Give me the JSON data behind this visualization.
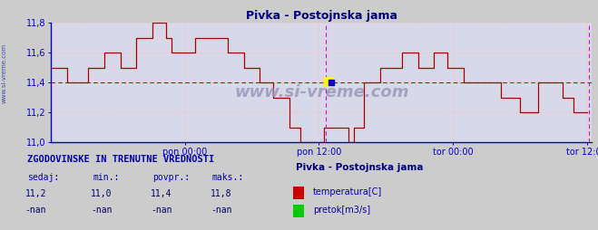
{
  "title": "Pivka - Postojnska jama",
  "title_color": "#000080",
  "bg_color": "#cccccc",
  "plot_bg_color": "#d8d8e8",
  "ylim": [
    11.0,
    11.8
  ],
  "ytick_vals": [
    11.0,
    11.2,
    11.4,
    11.6,
    11.8
  ],
  "xtick_labels": [
    "pon 00:00",
    "pon 12:00",
    "tor 00:00",
    "tor 12:00"
  ],
  "xtick_positions": [
    0.25,
    0.5,
    0.75,
    1.0
  ],
  "line_color": "#aa0000",
  "avg_value": 11.4,
  "avg_color": "#cc0000",
  "grid_color": "#ffbbbb",
  "vline1_x": 0.513,
  "vline2_x": 1.005,
  "vline_color": "#dd00dd",
  "axis_color": "#0000cc",
  "watermark": "www.si-vreme.com",
  "watermark_color": "#9999bb",
  "sidebar_text": "www.si-vreme.com",
  "sidebar_color": "#4444aa",
  "hist_title": "ZGODOVINSKE IN TRENUTNE VREDNOSTI",
  "hist_color": "#0000aa",
  "col_headers": [
    "sedaj:",
    "min.:",
    "povpr.:",
    "maks.:"
  ],
  "col_header_color": "#0000aa",
  "row1_vals": [
    "11,2",
    "11,0",
    "11,4",
    "11,8"
  ],
  "row2_vals": [
    "-nan",
    "-nan",
    "-nan",
    "-nan"
  ],
  "val_color": "#000066",
  "legend_title": "Pivka - Postojnska jama",
  "legend_title_color": "#000080",
  "temp_label": "temperatura[C]",
  "flow_label": "pretok[m3/s]",
  "temp_color": "#cc0000",
  "flow_color": "#00cc00",
  "temp_data_x": [
    0.0,
    0.03,
    0.03,
    0.07,
    0.07,
    0.1,
    0.1,
    0.13,
    0.13,
    0.16,
    0.16,
    0.19,
    0.19,
    0.215,
    0.215,
    0.225,
    0.225,
    0.27,
    0.27,
    0.33,
    0.33,
    0.36,
    0.36,
    0.39,
    0.39,
    0.415,
    0.415,
    0.445,
    0.445,
    0.465,
    0.465,
    0.51,
    0.51,
    0.555,
    0.555,
    0.565,
    0.565,
    0.585,
    0.585,
    0.615,
    0.615,
    0.655,
    0.655,
    0.685,
    0.685,
    0.715,
    0.715,
    0.74,
    0.74,
    0.77,
    0.77,
    0.8,
    0.8,
    0.84,
    0.84,
    0.875,
    0.875,
    0.91,
    0.91,
    0.955,
    0.955,
    0.975,
    0.975,
    1.0
  ],
  "temp_data_y": [
    11.5,
    11.5,
    11.4,
    11.4,
    11.5,
    11.5,
    11.6,
    11.6,
    11.5,
    11.5,
    11.7,
    11.7,
    11.8,
    11.8,
    11.7,
    11.7,
    11.6,
    11.6,
    11.7,
    11.7,
    11.6,
    11.6,
    11.5,
    11.5,
    11.4,
    11.4,
    11.3,
    11.3,
    11.1,
    11.1,
    11.0,
    11.0,
    11.1,
    11.1,
    11.0,
    11.0,
    11.1,
    11.1,
    11.4,
    11.4,
    11.5,
    11.5,
    11.6,
    11.6,
    11.5,
    11.5,
    11.6,
    11.6,
    11.5,
    11.5,
    11.4,
    11.4,
    11.4,
    11.4,
    11.3,
    11.3,
    11.2,
    11.2,
    11.4,
    11.4,
    11.3,
    11.3,
    11.2,
    11.2
  ]
}
